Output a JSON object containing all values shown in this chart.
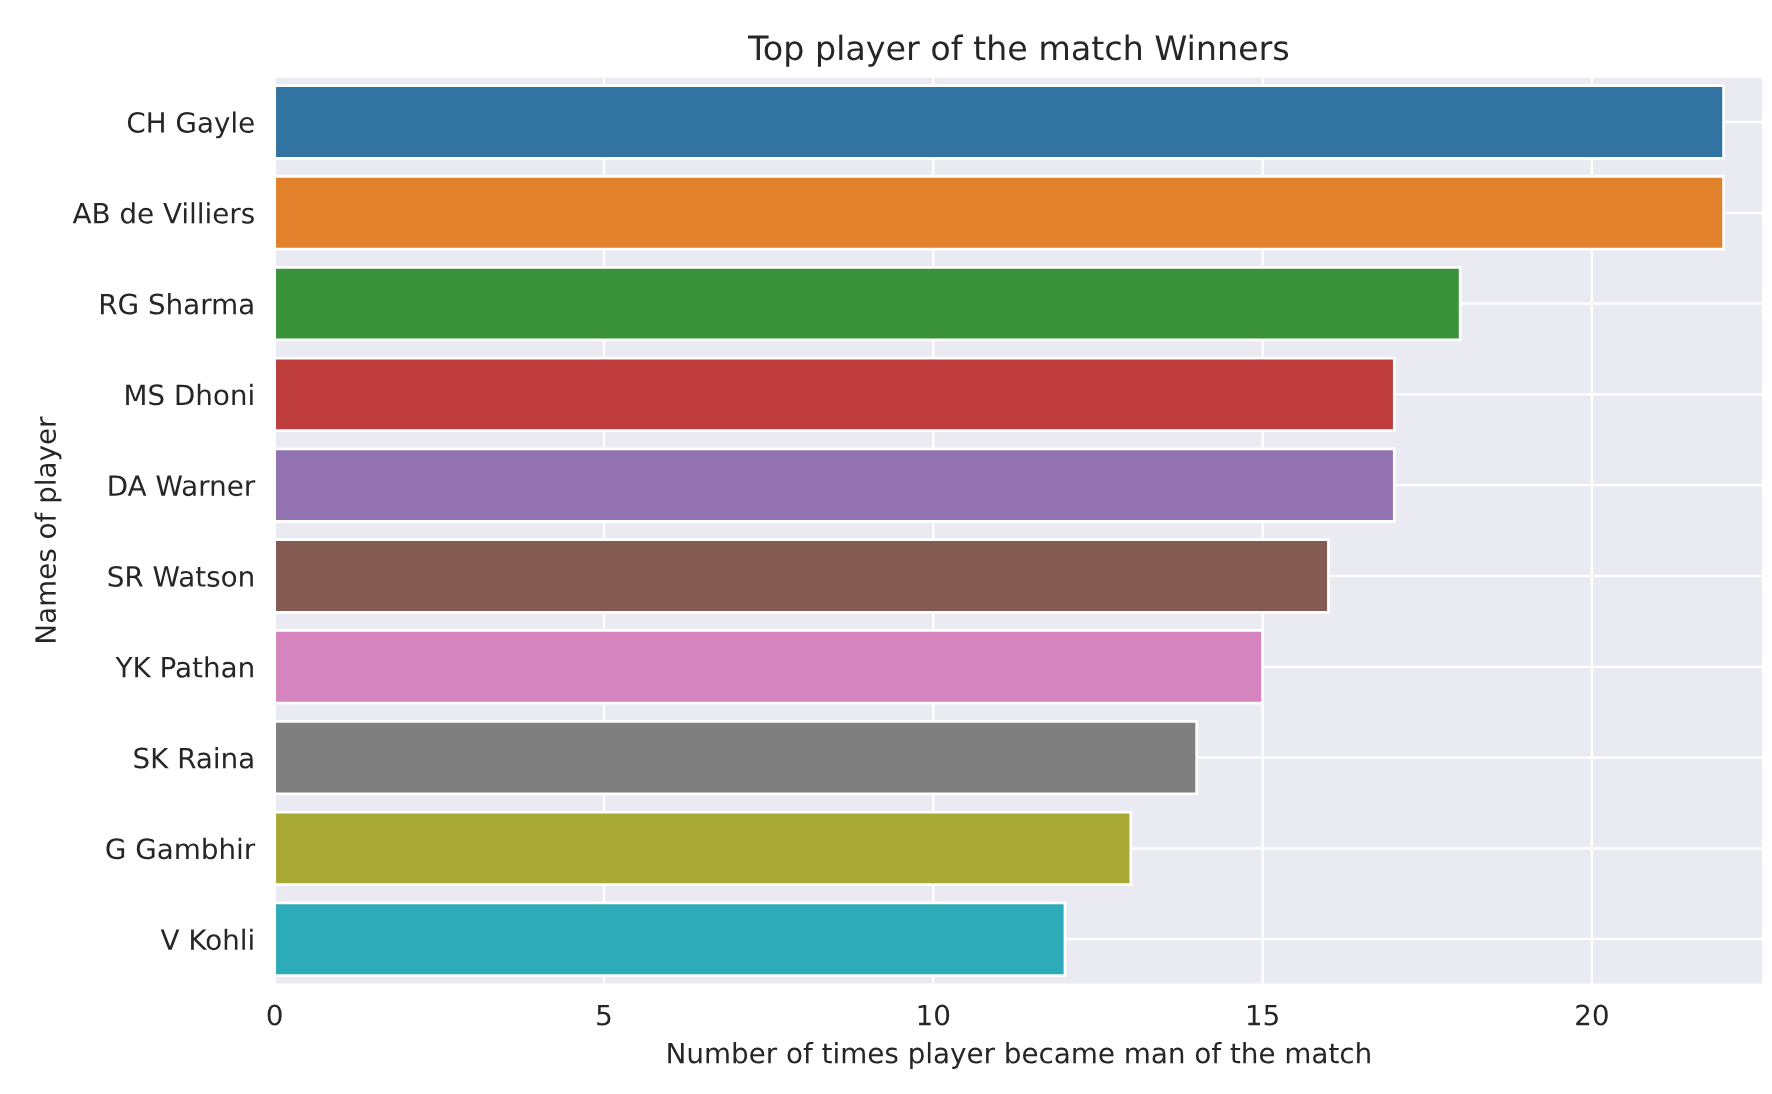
{
  "chart_data": {
    "type": "bar",
    "orientation": "horizontal",
    "title": "Top player of the match Winners",
    "xlabel": "Number of times player became man of the match",
    "ylabel": "Names of player",
    "categories": [
      "CH Gayle",
      "AB de Villiers",
      "RG Sharma",
      "MS Dhoni",
      "DA Warner",
      "SR Watson",
      "YK Pathan",
      "SK Raina",
      "G Gambhir",
      "V Kohli"
    ],
    "values": [
      22,
      22,
      18,
      17,
      17,
      16,
      15,
      14,
      13,
      12
    ],
    "colors": [
      "#3274a1",
      "#e1812c",
      "#3a923a",
      "#c03d3e",
      "#9372b2",
      "#845b53",
      "#d684bd",
      "#7f7f7f",
      "#a9aa35",
      "#2eabb8"
    ],
    "xlim": [
      0,
      22.6
    ],
    "xticks": [
      0,
      5,
      10,
      15,
      20
    ],
    "grid": true
  }
}
